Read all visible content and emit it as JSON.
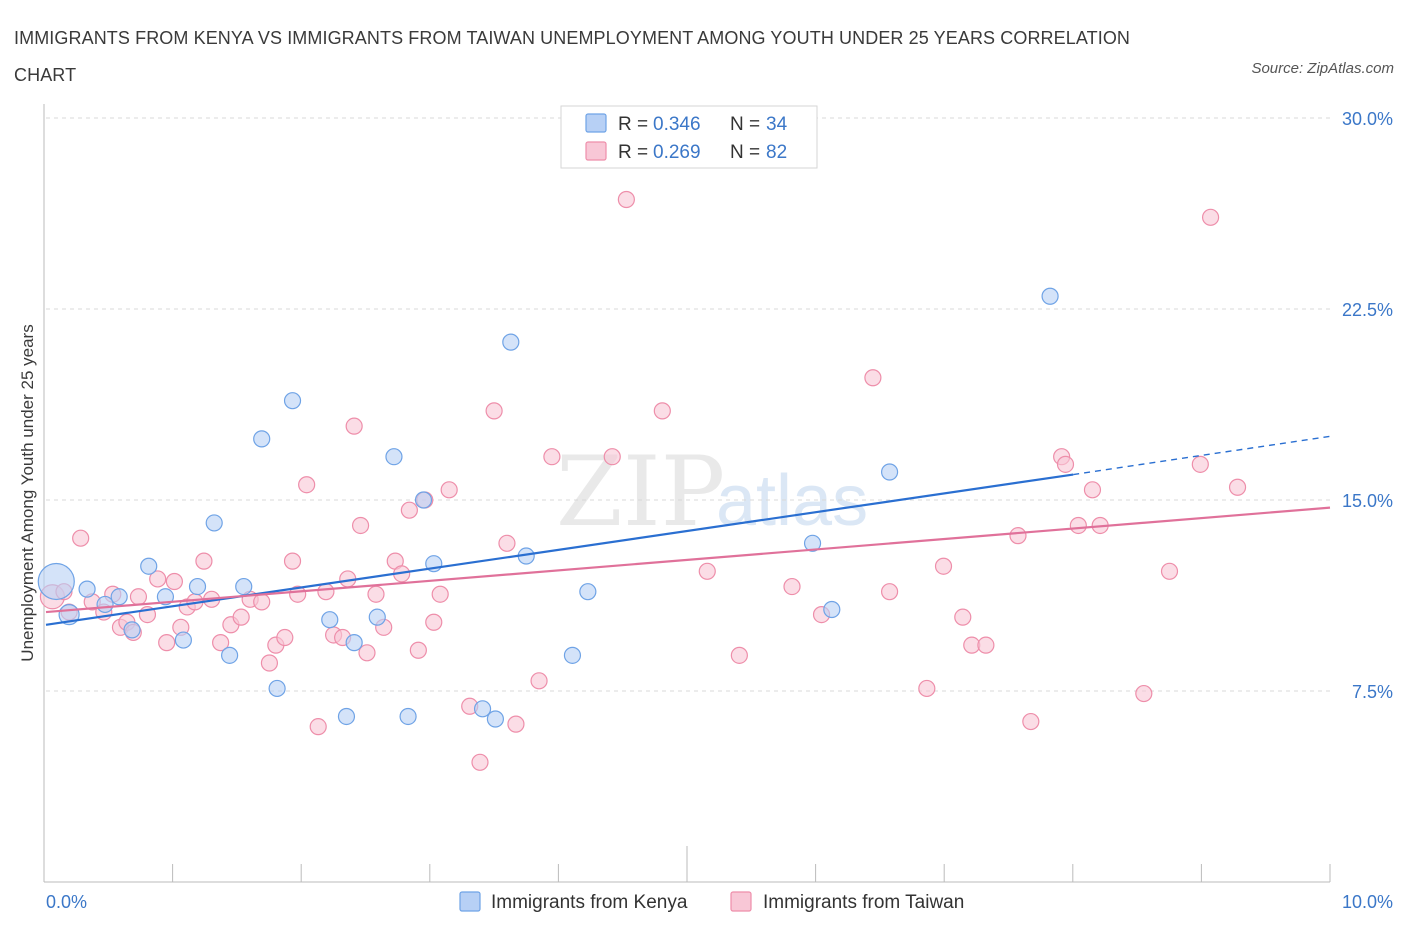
{
  "title": "IMMIGRANTS FROM KENYA VS IMMIGRANTS FROM TAIWAN UNEMPLOYMENT AMONG YOUTH UNDER 25 YEARS CORRELATION CHART",
  "source": "Source: ZipAtlas.com",
  "watermark": {
    "zip": "ZIP",
    "atlas": "atlas"
  },
  "colors": {
    "kenya": "#6fa3e6",
    "kenya_fill": "#b7d0f5",
    "kenya_line": "#2a6fd1",
    "taiwan": "#ee8eaa",
    "taiwan_fill": "#f8c7d6",
    "taiwan_line": "#e0719a",
    "tick": "#3b77c8",
    "grid": "#d8d8d8"
  },
  "legend": {
    "r_label": "R =",
    "n_label": "N =",
    "kenya_r": "0.346",
    "kenya_n": "34",
    "taiwan_r": "0.269",
    "taiwan_n": "82"
  },
  "chart_data": {
    "type": "scatter",
    "title": "IMMIGRANTS FROM KENYA VS IMMIGRANTS FROM TAIWAN UNEMPLOYMENT AMONG YOUTH UNDER 25 YEARS CORRELATION CHART",
    "xlabel": "",
    "ylabel": "Unemployment Among Youth under 25 years",
    "xlim": [
      0,
      10
    ],
    "ylim": [
      0,
      30
    ],
    "x_ticks": [
      {
        "value": 0,
        "label": "0.0%"
      },
      {
        "value": 10,
        "label": "10.0%"
      }
    ],
    "y_ticks": [
      {
        "value": 7.5,
        "label": "7.5%"
      },
      {
        "value": 15,
        "label": "15.0%"
      },
      {
        "value": 22.5,
        "label": "22.5%"
      },
      {
        "value": 30,
        "label": "30.0%"
      }
    ],
    "series": [
      {
        "name": "Immigrants from Kenya",
        "color": "kenya",
        "R": 0.346,
        "N": 34,
        "trend": {
          "x0": 0,
          "y0": 10.1,
          "x1": 8.0,
          "y1": 16.0,
          "dash_to_x": 10.0,
          "dash_to_y": 17.5
        },
        "points": [
          [
            0.08,
            11.8,
            18
          ],
          [
            0.18,
            10.5,
            10
          ],
          [
            0.32,
            11.5,
            8
          ],
          [
            0.46,
            10.9,
            8
          ],
          [
            0.57,
            11.2,
            8
          ],
          [
            0.67,
            9.9,
            8
          ],
          [
            0.8,
            12.4,
            8
          ],
          [
            0.93,
            11.2,
            8
          ],
          [
            1.07,
            9.5,
            8
          ],
          [
            1.18,
            11.6,
            8
          ],
          [
            1.31,
            14.1,
            8
          ],
          [
            1.43,
            8.9,
            8
          ],
          [
            1.54,
            11.6,
            8
          ],
          [
            1.68,
            17.4,
            8
          ],
          [
            1.8,
            7.6,
            8
          ],
          [
            1.92,
            18.9,
            8
          ],
          [
            2.21,
            10.3,
            8
          ],
          [
            2.34,
            6.5,
            8
          ],
          [
            2.4,
            9.4,
            8
          ],
          [
            2.58,
            10.4,
            8
          ],
          [
            2.71,
            16.7,
            8
          ],
          [
            2.82,
            6.5,
            8
          ],
          [
            2.94,
            15.0,
            8
          ],
          [
            3.02,
            12.5,
            8
          ],
          [
            3.4,
            6.8,
            8
          ],
          [
            3.5,
            6.4,
            8
          ],
          [
            3.62,
            21.2,
            8
          ],
          [
            3.74,
            12.8,
            8
          ],
          [
            4.1,
            8.9,
            8
          ],
          [
            4.22,
            11.4,
            8
          ],
          [
            5.97,
            13.3,
            8
          ],
          [
            6.12,
            10.7,
            8
          ],
          [
            6.57,
            16.1,
            8
          ],
          [
            7.82,
            23.0,
            8
          ]
        ]
      },
      {
        "name": "Immigrants from Taiwan",
        "color": "taiwan",
        "R": 0.269,
        "N": 82,
        "trend": {
          "x0": 0,
          "y0": 10.6,
          "x1": 10.0,
          "y1": 14.7
        },
        "points": [
          [
            0.05,
            11.2,
            12
          ],
          [
            0.14,
            11.4,
            8
          ],
          [
            0.18,
            10.6,
            8
          ],
          [
            0.27,
            13.5,
            8
          ],
          [
            0.36,
            11.0,
            8
          ],
          [
            0.45,
            10.6,
            8
          ],
          [
            0.52,
            11.3,
            8
          ],
          [
            0.58,
            10.0,
            8
          ],
          [
            0.63,
            10.2,
            8
          ],
          [
            0.68,
            9.8,
            8
          ],
          [
            0.72,
            11.2,
            8
          ],
          [
            0.79,
            10.5,
            8
          ],
          [
            0.87,
            11.9,
            8
          ],
          [
            0.94,
            9.4,
            8
          ],
          [
            1.0,
            11.8,
            8
          ],
          [
            1.05,
            10.0,
            8
          ],
          [
            1.1,
            10.8,
            8
          ],
          [
            1.16,
            11.0,
            8
          ],
          [
            1.23,
            12.6,
            8
          ],
          [
            1.29,
            11.1,
            8
          ],
          [
            1.36,
            9.4,
            8
          ],
          [
            1.44,
            10.1,
            8
          ],
          [
            1.52,
            10.4,
            8
          ],
          [
            1.59,
            11.1,
            8
          ],
          [
            1.68,
            11.0,
            8
          ],
          [
            1.74,
            8.6,
            8
          ],
          [
            1.79,
            9.3,
            8
          ],
          [
            1.86,
            9.6,
            8
          ],
          [
            1.92,
            12.6,
            8
          ],
          [
            1.96,
            11.3,
            8
          ],
          [
            2.03,
            15.6,
            8
          ],
          [
            2.12,
            6.1,
            8
          ],
          [
            2.18,
            11.4,
            8
          ],
          [
            2.24,
            9.7,
            8
          ],
          [
            2.31,
            9.6,
            8
          ],
          [
            2.35,
            11.9,
            8
          ],
          [
            2.4,
            17.9,
            8
          ],
          [
            2.45,
            14.0,
            8
          ],
          [
            2.5,
            9.0,
            8
          ],
          [
            2.57,
            11.3,
            8
          ],
          [
            2.63,
            10.0,
            8
          ],
          [
            2.72,
            12.6,
            8
          ],
          [
            2.77,
            12.1,
            8
          ],
          [
            2.83,
            14.6,
            8
          ],
          [
            2.9,
            9.1,
            8
          ],
          [
            2.95,
            15.0,
            8
          ],
          [
            3.02,
            10.2,
            8
          ],
          [
            3.07,
            11.3,
            8
          ],
          [
            3.14,
            15.4,
            8
          ],
          [
            3.3,
            6.9,
            8
          ],
          [
            3.38,
            4.7,
            8
          ],
          [
            3.49,
            18.5,
            8
          ],
          [
            3.59,
            13.3,
            8
          ],
          [
            3.66,
            6.2,
            8
          ],
          [
            3.84,
            7.9,
            8
          ],
          [
            3.94,
            16.7,
            8
          ],
          [
            4.41,
            16.7,
            8
          ],
          [
            4.52,
            26.8,
            8
          ],
          [
            4.8,
            18.5,
            8
          ],
          [
            5.15,
            12.2,
            8
          ],
          [
            5.4,
            8.9,
            8
          ],
          [
            5.81,
            11.6,
            8
          ],
          [
            6.04,
            10.5,
            8
          ],
          [
            6.44,
            19.8,
            8
          ],
          [
            6.57,
            11.4,
            8
          ],
          [
            6.86,
            7.6,
            8
          ],
          [
            6.99,
            12.4,
            8
          ],
          [
            7.14,
            10.4,
            8
          ],
          [
            7.21,
            9.3,
            8
          ],
          [
            7.32,
            9.3,
            8
          ],
          [
            7.57,
            13.6,
            8
          ],
          [
            7.67,
            6.3,
            8
          ],
          [
            7.91,
            16.7,
            8
          ],
          [
            7.94,
            16.4,
            8
          ],
          [
            8.04,
            14.0,
            8
          ],
          [
            8.15,
            15.4,
            8
          ],
          [
            8.21,
            14.0,
            8
          ],
          [
            8.55,
            7.4,
            8
          ],
          [
            8.75,
            12.2,
            8
          ],
          [
            8.99,
            16.4,
            8
          ],
          [
            9.07,
            26.1,
            8
          ],
          [
            9.28,
            15.5,
            8
          ]
        ]
      }
    ]
  }
}
